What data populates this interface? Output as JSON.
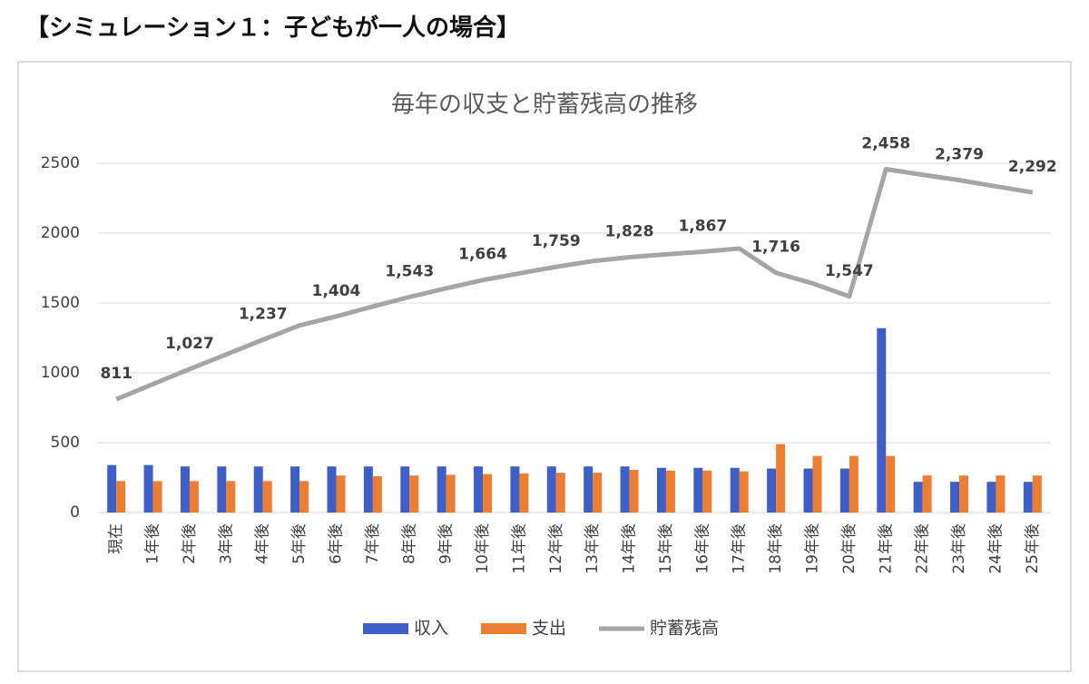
{
  "heading": "【シミュレーション１：子どもが一人の場合】",
  "chart_data": {
    "type": "bar_line",
    "title": "毎年の収支と貯蓄残高の推移",
    "categories": [
      "現在",
      "1年後",
      "2年後",
      "3年後",
      "4年後",
      "5年後",
      "6年後",
      "7年後",
      "8年後",
      "9年後",
      "10年後",
      "11年後",
      "12年後",
      "13年後",
      "14年後",
      "15年後",
      "16年後",
      "17年後",
      "18年後",
      "19年後",
      "20年後",
      "21年後",
      "22年後",
      "23年後",
      "24年後",
      "25年後"
    ],
    "series": [
      {
        "name": "収入",
        "color": "#3f5fc8",
        "kind": "bar",
        "values": [
          340,
          340,
          330,
          330,
          330,
          330,
          330,
          330,
          330,
          330,
          330,
          330,
          330,
          330,
          330,
          320,
          320,
          320,
          315,
          315,
          315,
          1320,
          220,
          220,
          220,
          220
        ]
      },
      {
        "name": "支出",
        "color": "#ed7d31",
        "kind": "bar",
        "values": [
          225,
          225,
          225,
          225,
          225,
          225,
          265,
          260,
          265,
          270,
          275,
          280,
          285,
          285,
          305,
          300,
          300,
          295,
          490,
          405,
          405,
          405,
          265,
          265,
          265,
          265
        ]
      },
      {
        "name": "貯蓄残高",
        "color": "#a5a5a5",
        "kind": "line",
        "values": [
          811,
          919,
          1027,
          1132,
          1237,
          1340,
          1404,
          1475,
          1543,
          1605,
          1664,
          1712,
          1759,
          1800,
          1828,
          1848,
          1867,
          1890,
          1716,
          1640,
          1547,
          2458,
          2418,
          2379,
          2335,
          2292
        ],
        "value_labels": [
          "811",
          null,
          "1,027",
          null,
          "1,237",
          null,
          "1,404",
          null,
          "1,543",
          null,
          "1,664",
          null,
          "1,759",
          null,
          "1,828",
          null,
          "1,867",
          null,
          "1,716",
          null,
          "1,547",
          "2,458",
          null,
          "2,379",
          null,
          "2,292"
        ]
      }
    ],
    "ylim": [
      0,
      2500
    ],
    "yticks": [
      0,
      500,
      1000,
      1500,
      2000,
      2500
    ],
    "grid": true,
    "legend": "bottom"
  }
}
